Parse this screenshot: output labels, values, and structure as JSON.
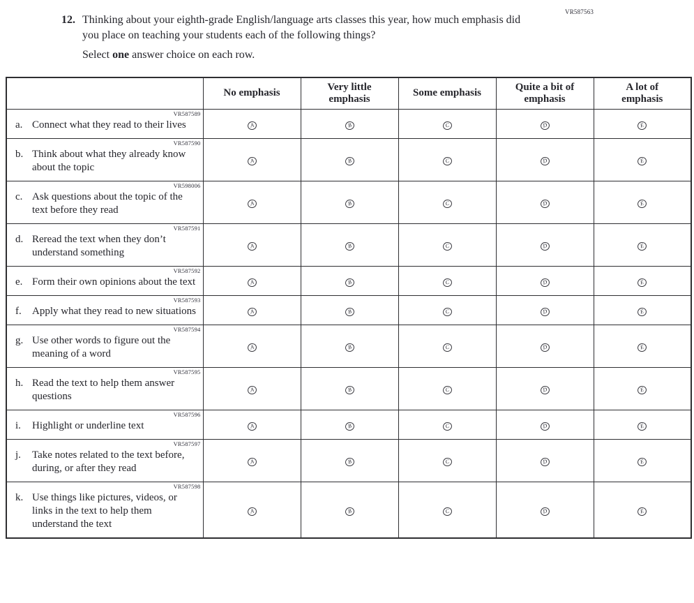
{
  "page": {
    "form_code": "VR587563",
    "question_number": "12.",
    "question_text": "Thinking about your eighth-grade English/language arts classes this year, how much emphasis did you place on teaching your students each of the following things?",
    "instruction": {
      "prefix": "Select ",
      "bold": "one",
      "suffix": " answer choice on each row."
    }
  },
  "table": {
    "columns": [
      "No emphasis",
      "Very little\nemphasis",
      "Some emphasis",
      "Quite a bit of\nemphasis",
      "A lot of\nemphasis"
    ],
    "options": [
      "A",
      "B",
      "C",
      "D",
      "E"
    ],
    "rows": [
      {
        "letter": "a.",
        "code": "VR587589",
        "text": "Connect what they read to their lives"
      },
      {
        "letter": "b.",
        "code": "VR587590",
        "text": "Think about what they already know about the topic"
      },
      {
        "letter": "c.",
        "code": "VR598006",
        "text": "Ask questions about the topic of the text before they read"
      },
      {
        "letter": "d.",
        "code": "VR587591",
        "text": "Reread the text when they don’t understand something"
      },
      {
        "letter": "e.",
        "code": "VR587592",
        "text": "Form their own opinions about the text"
      },
      {
        "letter": "f.",
        "code": "VR587593",
        "text": "Apply what they read to new situations"
      },
      {
        "letter": "g.",
        "code": "VR587594",
        "text": "Use other words to figure out the meaning of a word"
      },
      {
        "letter": "h.",
        "code": "VR587595",
        "text": "Read the text to help them answer questions"
      },
      {
        "letter": "i.",
        "code": "VR587596",
        "text": "Highlight or underline text"
      },
      {
        "letter": "j.",
        "code": "VR587597",
        "text": "Take notes related to the text before, during, or after they read"
      },
      {
        "letter": "k.",
        "code": "VR587598",
        "text": "Use things like pictures, videos, or links in the text to help them understand the text"
      }
    ]
  }
}
